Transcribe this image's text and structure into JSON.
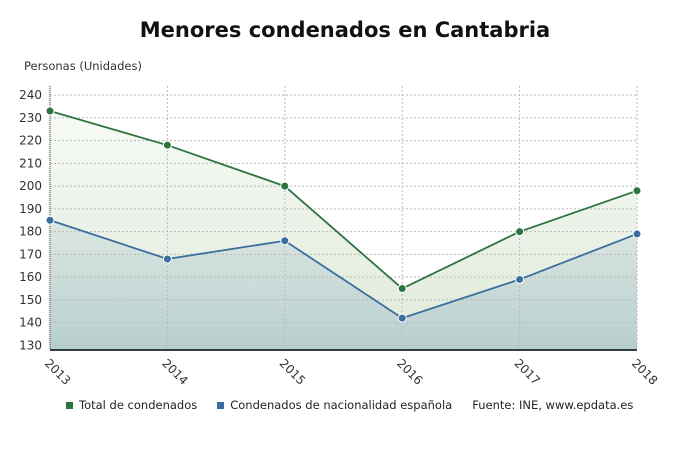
{
  "chart_data": {
    "type": "area",
    "title": "Menores condenados en Cantabria",
    "ylabel": "Personas (Unidades)",
    "xlabel": "",
    "categories": [
      "2013",
      "2014",
      "2015",
      "2016",
      "2017",
      "2018"
    ],
    "ylim": [
      128,
      244
    ],
    "yticks": [
      130,
      140,
      150,
      160,
      170,
      180,
      190,
      200,
      210,
      220,
      230,
      240
    ],
    "grid": true,
    "legend_placement": "bottom",
    "series": [
      {
        "name": "Total de condenados",
        "color": "#2e7440",
        "values": [
          233,
          218,
          200,
          155,
          180,
          198
        ]
      },
      {
        "name": "Condenados de nacionalidad española",
        "color": "#3a6e9e",
        "values": [
          185,
          168,
          176,
          142,
          159,
          179
        ]
      }
    ],
    "source": "Fuente: INE, www.epdata.es"
  }
}
